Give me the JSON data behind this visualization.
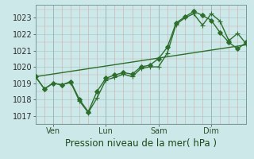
{
  "xlabel": "Pression niveau de la mer( hPa )",
  "bg_color": "#cce8e8",
  "plot_bg_color": "#cce8e8",
  "line_color": "#2d6e2d",
  "grid_color_major_h": "#aacccc",
  "grid_color_major_v": "#ccaaaa",
  "ylim": [
    1016.5,
    1023.8
  ],
  "yticks": [
    1017,
    1018,
    1019,
    1020,
    1021,
    1022,
    1023
  ],
  "xlim": [
    0,
    360
  ],
  "xtick_positions": [
    30,
    120,
    210,
    300
  ],
  "xtick_labels": [
    "Ven",
    "Lun",
    "Sam",
    "Dim"
  ],
  "vline_positions": [
    30,
    120,
    210,
    300
  ],
  "num_minor_v": 9,
  "line1_x": [
    0,
    15,
    30,
    45,
    60,
    75,
    90,
    105,
    120,
    135,
    150,
    165,
    180,
    195,
    210,
    225,
    240,
    255,
    270,
    285,
    300,
    315,
    330,
    345,
    360
  ],
  "line1_y": [
    1019.4,
    1018.65,
    1019.0,
    1018.9,
    1019.05,
    1017.9,
    1017.2,
    1018.1,
    1019.2,
    1019.35,
    1019.55,
    1019.4,
    1019.9,
    1020.0,
    1020.0,
    1020.85,
    1022.6,
    1023.0,
    1023.25,
    1022.55,
    1023.25,
    1022.8,
    1021.6,
    1022.05,
    1021.4
  ],
  "line2_x": [
    0,
    15,
    30,
    45,
    60,
    75,
    90,
    105,
    120,
    135,
    150,
    165,
    180,
    195,
    210,
    225,
    240,
    255,
    270,
    285,
    300,
    315,
    330,
    345,
    360
  ],
  "line2_y": [
    1019.4,
    1018.65,
    1019.0,
    1018.9,
    1019.1,
    1018.0,
    1017.25,
    1018.5,
    1019.3,
    1019.5,
    1019.65,
    1019.55,
    1020.0,
    1020.1,
    1020.5,
    1021.2,
    1022.7,
    1023.05,
    1023.4,
    1023.15,
    1022.85,
    1022.1,
    1021.5,
    1021.1,
    1021.5
  ],
  "trend_x": [
    0,
    360
  ],
  "trend_y": [
    1019.4,
    1021.35
  ],
  "marker_size": 2.8,
  "linewidth": 1.0,
  "xlabel_fontsize": 8.5,
  "tick_fontsize": 7
}
